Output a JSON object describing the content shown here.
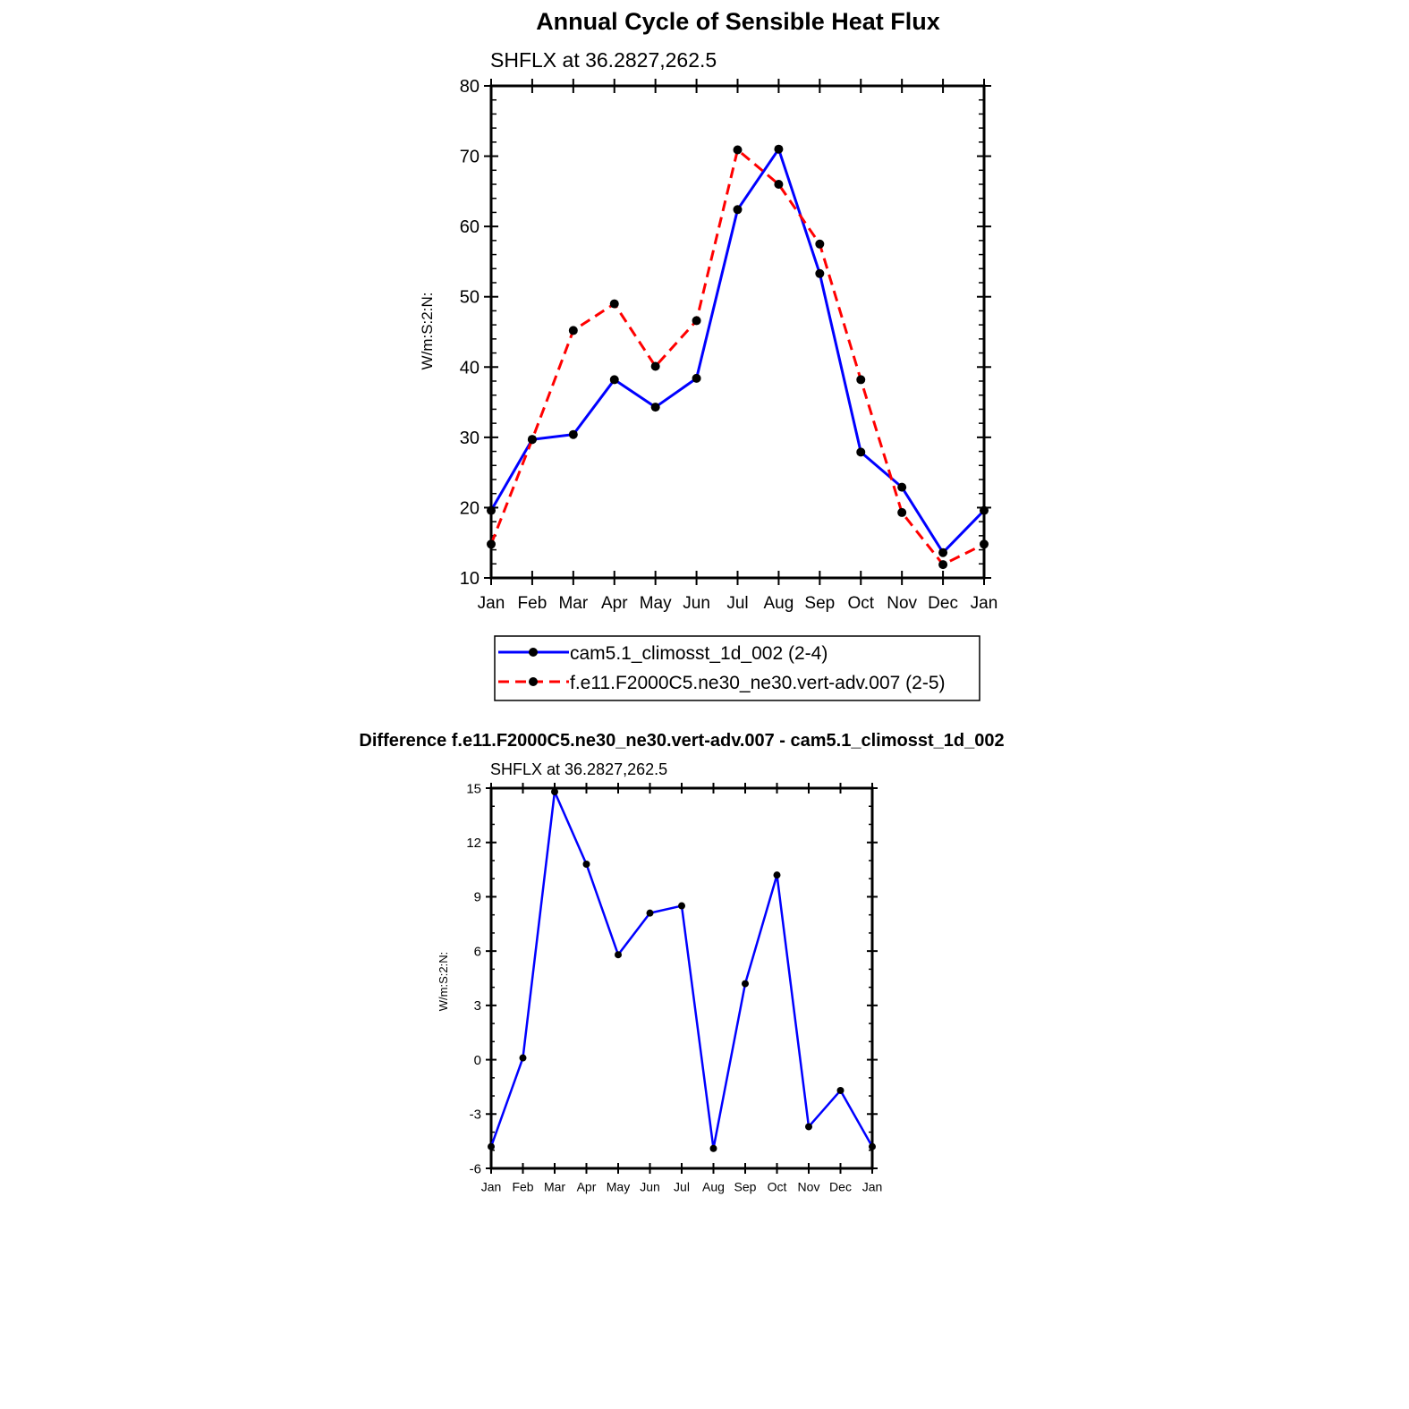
{
  "chart_data": [
    {
      "type": "line",
      "title": "Annual Cycle of Sensible Heat Flux",
      "subtitle": "SHFLX at 36.2827,262.5",
      "ylabel": "W/m:S:2:N:",
      "xlabel": "",
      "categories": [
        "Jan",
        "Feb",
        "Mar",
        "Apr",
        "May",
        "Jun",
        "Jul",
        "Aug",
        "Sep",
        "Oct",
        "Nov",
        "Dec",
        "Jan"
      ],
      "ylim": [
        10,
        80
      ],
      "yticks": [
        "10",
        "20",
        "30",
        "40",
        "50",
        "60",
        "70",
        "80"
      ],
      "grid": false,
      "legend": "bottom, boxed",
      "series": [
        {
          "name": "cam5.1_climosst_1d_002 (2-4)",
          "color": "#0000ff",
          "dash": "solid",
          "values": [
            19.6,
            29.7,
            30.4,
            38.2,
            34.3,
            38.4,
            62.4,
            71.0,
            53.3,
            27.9,
            22.9,
            13.6,
            19.6
          ]
        },
        {
          "name": "f.e11.F2000C5.ne30_ne30.vert-adv.007 (2-5)",
          "color": "#ff0000",
          "dash": "dashed",
          "values": [
            14.8,
            29.7,
            45.2,
            49.0,
            40.1,
            46.6,
            70.9,
            66.0,
            57.5,
            38.2,
            19.3,
            11.9,
            14.8
          ]
        }
      ]
    },
    {
      "type": "line",
      "title": "Difference f.e11.F2000C5.ne30_ne30.vert-adv.007 - cam5.1_climosst_1d_002",
      "subtitle": "SHFLX at 36.2827,262.5",
      "ylabel": "W/m:S:2:N:",
      "xlabel": "",
      "categories": [
        "Jan",
        "Feb",
        "Mar",
        "Apr",
        "May",
        "Jun",
        "Jul",
        "Aug",
        "Sep",
        "Oct",
        "Nov",
        "Dec",
        "Jan"
      ],
      "ylim": [
        -6,
        15
      ],
      "yticks": [
        "-6",
        "-3",
        "0",
        "3",
        "6",
        "9",
        "12",
        "15"
      ],
      "grid": false,
      "series": [
        {
          "color": "#0000ff",
          "dash": "solid",
          "values": [
            -4.8,
            0.1,
            14.8,
            10.8,
            5.8,
            8.1,
            8.5,
            -4.9,
            4.2,
            10.2,
            -3.7,
            -1.7,
            -4.8
          ]
        }
      ]
    }
  ]
}
